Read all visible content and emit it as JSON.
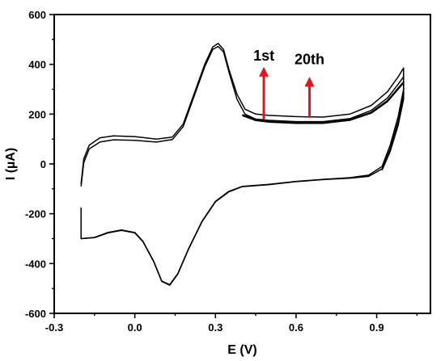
{
  "chart_data": {
    "type": "line",
    "xlabel": "E (V)",
    "ylabel": "I (µA)",
    "xlim": [
      -0.3,
      1.1
    ],
    "ylim": [
      -600,
      600
    ],
    "x_ticks": [
      -0.3,
      0.0,
      0.3,
      0.6,
      0.9
    ],
    "x_tick_labels": [
      "-0.3",
      "0.0",
      "0.3",
      "0.6",
      "0.9"
    ],
    "y_ticks": [
      -600,
      -400,
      -200,
      0,
      200,
      400,
      600
    ],
    "y_tick_labels": [
      "-600",
      "-400",
      "-200",
      "0",
      "200",
      "400",
      "600"
    ],
    "grid": false,
    "series": [
      {
        "values": [
          [
            -0.2,
            -80
          ],
          [
            -0.19,
            20
          ],
          [
            -0.17,
            75
          ],
          [
            -0.13,
            105
          ],
          [
            -0.08,
            113
          ],
          [
            0.0,
            110
          ],
          [
            0.08,
            100
          ],
          [
            0.14,
            108
          ],
          [
            0.18,
            160
          ],
          [
            0.22,
            280
          ],
          [
            0.26,
            400
          ],
          [
            0.29,
            470
          ],
          [
            0.31,
            484
          ],
          [
            0.33,
            460
          ],
          [
            0.35,
            380
          ],
          [
            0.38,
            280
          ],
          [
            0.41,
            220
          ],
          [
            0.45,
            200
          ],
          [
            0.5,
            195
          ],
          [
            0.6,
            190
          ],
          [
            0.7,
            188
          ],
          [
            0.8,
            200
          ],
          [
            0.88,
            235
          ],
          [
            0.94,
            290
          ],
          [
            0.98,
            350
          ],
          [
            1.0,
            385
          ],
          [
            1.0,
            300
          ],
          [
            0.98,
            190
          ],
          [
            0.95,
            75
          ],
          [
            0.92,
            -10
          ],
          [
            0.87,
            -45
          ],
          [
            0.8,
            -55
          ],
          [
            0.7,
            -62
          ],
          [
            0.6,
            -70
          ],
          [
            0.5,
            -82
          ],
          [
            0.4,
            -90
          ],
          [
            0.35,
            -110
          ],
          [
            0.3,
            -150
          ],
          [
            0.25,
            -230
          ],
          [
            0.2,
            -340
          ],
          [
            0.16,
            -440
          ],
          [
            0.13,
            -485
          ],
          [
            0.1,
            -470
          ],
          [
            0.07,
            -390
          ],
          [
            0.03,
            -310
          ],
          [
            0.0,
            -275
          ],
          [
            -0.05,
            -265
          ],
          [
            -0.1,
            -275
          ],
          [
            -0.15,
            -295
          ],
          [
            -0.2,
            -300
          ]
        ]
      },
      {
        "values": [
          [
            -0.2,
            -90
          ],
          [
            -0.19,
            5
          ],
          [
            -0.17,
            60
          ],
          [
            -0.13,
            88
          ],
          [
            -0.08,
            97
          ],
          [
            0.0,
            95
          ],
          [
            0.08,
            88
          ],
          [
            0.14,
            98
          ],
          [
            0.18,
            150
          ],
          [
            0.22,
            270
          ],
          [
            0.26,
            390
          ],
          [
            0.29,
            460
          ],
          [
            0.31,
            472
          ],
          [
            0.33,
            450
          ],
          [
            0.35,
            370
          ],
          [
            0.38,
            260
          ],
          [
            0.41,
            200
          ],
          [
            0.45,
            180
          ],
          [
            0.5,
            175
          ],
          [
            0.6,
            170
          ],
          [
            0.7,
            170
          ],
          [
            0.8,
            182
          ],
          [
            0.88,
            215
          ],
          [
            0.94,
            265
          ],
          [
            0.98,
            320
          ],
          [
            1.0,
            350
          ],
          [
            1.0,
            280
          ],
          [
            0.98,
            170
          ],
          [
            0.95,
            60
          ],
          [
            0.92,
            -20
          ],
          [
            0.87,
            -50
          ],
          [
            0.8,
            -57
          ],
          [
            0.7,
            -63
          ],
          [
            0.6,
            -71
          ],
          [
            0.5,
            -83
          ],
          [
            0.4,
            -91
          ],
          [
            0.35,
            -112
          ],
          [
            0.3,
            -152
          ],
          [
            0.25,
            -232
          ],
          [
            0.2,
            -342
          ],
          [
            0.16,
            -442
          ],
          [
            0.13,
            -487
          ],
          [
            0.1,
            -472
          ],
          [
            0.07,
            -392
          ],
          [
            0.03,
            -312
          ],
          [
            0.0,
            -277
          ],
          [
            -0.05,
            -267
          ],
          [
            -0.1,
            -277
          ],
          [
            -0.15,
            -296
          ],
          [
            -0.2,
            -300
          ],
          [
            -0.2,
            -175
          ]
        ]
      },
      {
        "values": [
          [
            0.4,
            198
          ],
          [
            0.45,
            178
          ],
          [
            0.5,
            172
          ],
          [
            0.6,
            166
          ],
          [
            0.7,
            166
          ],
          [
            0.8,
            178
          ],
          [
            0.88,
            208
          ],
          [
            0.94,
            255
          ],
          [
            0.98,
            305
          ],
          [
            1.0,
            330
          ],
          [
            1.0,
            265
          ],
          [
            0.98,
            160
          ],
          [
            0.95,
            55
          ],
          [
            0.92,
            -22
          ]
        ]
      },
      {
        "values": [
          [
            0.4,
            194
          ],
          [
            0.45,
            174
          ],
          [
            0.5,
            168
          ],
          [
            0.6,
            163
          ],
          [
            0.7,
            163
          ],
          [
            0.8,
            175
          ],
          [
            0.88,
            204
          ],
          [
            0.94,
            250
          ],
          [
            0.98,
            300
          ],
          [
            1.0,
            325
          ],
          [
            1.0,
            260
          ],
          [
            0.98,
            155
          ],
          [
            0.95,
            50
          ],
          [
            0.92,
            -25
          ]
        ]
      }
    ],
    "annotations": [
      {
        "text": "1st",
        "arrow_x": 0.48,
        "arrow_from": 180,
        "arrow_to": 390,
        "label_y": 415,
        "color": "#e8141c"
      },
      {
        "text": "20th",
        "arrow_x": 0.65,
        "arrow_from": 185,
        "arrow_to": 350,
        "label_y": 400,
        "color": "#e8141c"
      }
    ]
  }
}
